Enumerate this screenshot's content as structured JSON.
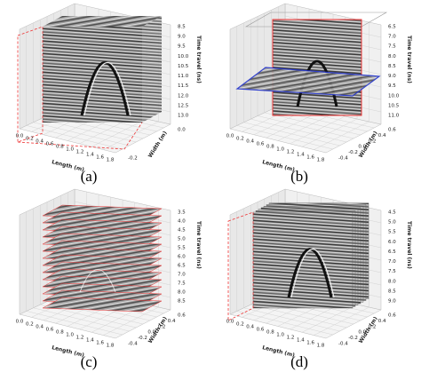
{
  "panels": [
    {
      "label": "(a)",
      "length_label": "Length (m)",
      "width_label": "Width (m)",
      "time_label": "Time travel (ns)",
      "length_ticks": [
        "0.0",
        "0.2",
        "0.4",
        "0.6",
        "0.8",
        "1.0",
        "1.2",
        "1.4",
        "1.6",
        "1.8"
      ],
      "width_ticks": [
        "-0.2",
        "0.0"
      ],
      "time_ticks": [
        "8.5",
        "9.0",
        "9.5",
        "10.0",
        "10.5",
        "11.0",
        "11.5",
        "12.0",
        "12.5",
        "13.0"
      ]
    },
    {
      "label": "(b)",
      "length_label": "Length (m)",
      "width_label": "Width (m)",
      "time_label": "Time travel (ns)",
      "length_ticks": [
        "0.0",
        "0.2",
        "0.4",
        "0.6",
        "0.8",
        "1.0",
        "1.2",
        "1.4",
        "1.6",
        "1.8"
      ],
      "width_ticks": [
        "-0.4",
        "-0.2",
        "0.0",
        "0.2",
        "0.4",
        "0.6"
      ],
      "time_ticks": [
        "6.5",
        "7.0",
        "7.5",
        "8.0",
        "8.5",
        "9.0",
        "9.5",
        "10.0",
        "10.5",
        "11.0"
      ]
    },
    {
      "label": "(c)",
      "length_label": "Length (m)",
      "width_label": "Width (m)",
      "time_label": "Time travel (ns)",
      "length_ticks": [
        "0.0",
        "0.2",
        "0.4",
        "0.6",
        "0.8",
        "1.0",
        "1.2",
        "1.4",
        "1.6",
        "1.8"
      ],
      "width_ticks": [
        "-0.4",
        "-0.2",
        "0.0",
        "0.2",
        "0.4",
        "0.6"
      ],
      "time_ticks": [
        "3.5",
        "4.0",
        "4.5",
        "5.0",
        "5.5",
        "6.0",
        "6.5",
        "7.0",
        "7.5",
        "8.0",
        "8.5"
      ]
    },
    {
      "label": "(d)",
      "length_label": "Length (m)",
      "width_label": "Width (m)",
      "time_label": "Time travel (ns)",
      "length_ticks": [
        "0.0",
        "0.2",
        "0.4",
        "0.6",
        "0.8",
        "1.0",
        "1.2",
        "1.4",
        "1.6",
        "1.8"
      ],
      "width_ticks": [
        "-0.4",
        "-0.2",
        "0.0",
        "0.2",
        "0.4",
        "0.6"
      ],
      "time_ticks": [
        "4.5",
        "5.0",
        "5.5",
        "6.0",
        "6.5",
        "7.0",
        "7.5",
        "8.0",
        "8.5",
        "9.0"
      ]
    }
  ]
}
